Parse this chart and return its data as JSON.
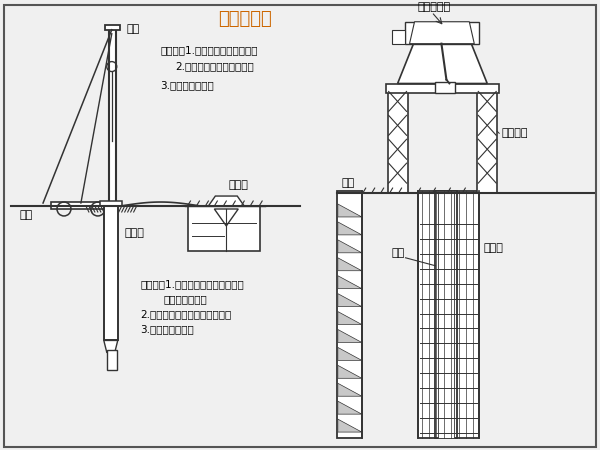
{
  "title": "桩基础施工",
  "title_color": "#CC6600",
  "bg_color": "#F0F0F0",
  "line_color": "#333333",
  "text_color": "#000000",
  "fig_width": 6.0,
  "fig_height": 4.5,
  "border_color": "#555555",
  "step1_lines": [
    "步骤一：1.平整场地，桩位放线。",
    "2.布设泥浆池，埋设钢护筒",
    "3.钻机就位钻孔。"
  ],
  "step2_lines": [
    "步骤二：1.钻至设计标高后，清孔、",
    "换浆、移开钻机",
    "2.吊放钢筋笼，安装灌注支架。",
    "3.浇注钻孔桩砼。"
  ],
  "label_zuanji": "钻机",
  "label_dimian_left": "地面",
  "label_ganghuton": "钢护筒",
  "label_nijiangchi": "泥浆池",
  "label_dimian_right": "地面",
  "label_hunningtu": "混凝土罐车",
  "label_guanzhi": "灌注支架",
  "label_daoguan": "导管",
  "label_gangjinlong": "钢筋笼"
}
